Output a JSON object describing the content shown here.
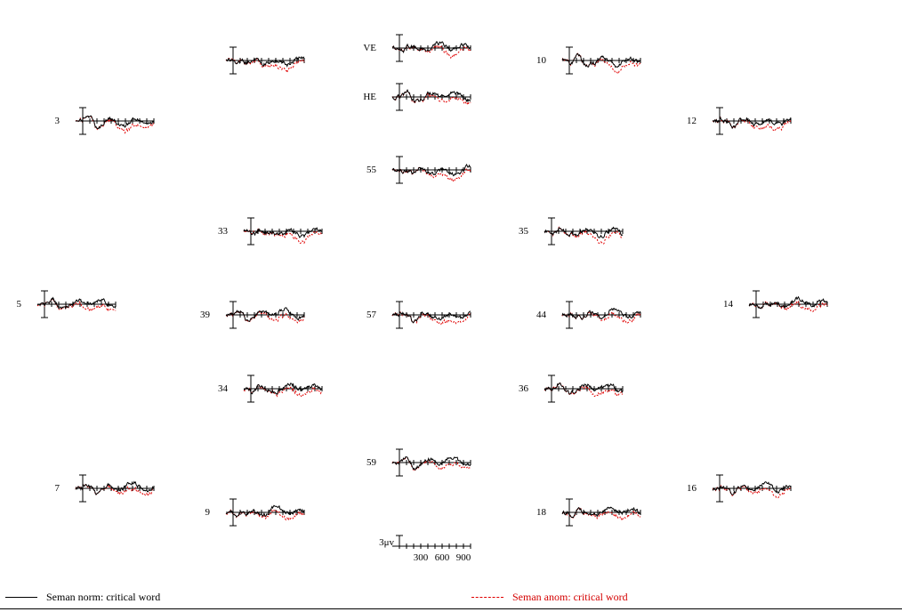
{
  "chart_data": {
    "type": "line",
    "layout": "topographic-erp-montage",
    "x_unit": "ms",
    "x_range": [
      -100,
      1000
    ],
    "x_ticks": [
      300,
      600,
      900
    ],
    "scale_label": "3μv",
    "scale_uv": 3,
    "polarity": "negative-up",
    "colors": {
      "norm": "#000000",
      "anom": "#e00000"
    },
    "series": [
      {
        "name": "Seman norm: critical word",
        "style": "solid"
      },
      {
        "name": "Seman anom: critical word",
        "style": "dashed"
      }
    ],
    "channels": [
      {
        "label": ""
      },
      {
        "label": "VE"
      },
      {
        "label": "10"
      },
      {
        "label": "HE"
      },
      {
        "label": "3"
      },
      {
        "label": "12"
      },
      {
        "label": "55"
      },
      {
        "label": "33"
      },
      {
        "label": "35"
      },
      {
        "label": "5"
      },
      {
        "label": "39"
      },
      {
        "label": "57"
      },
      {
        "label": "44"
      },
      {
        "label": "14"
      },
      {
        "label": "34"
      },
      {
        "label": "36"
      },
      {
        "label": "59"
      },
      {
        "label": "7"
      },
      {
        "label": "16"
      },
      {
        "label": "9"
      },
      {
        "label": "18"
      }
    ]
  },
  "legend": {
    "norm": "Seman norm: critical word",
    "anom": "Seman anom: critical word"
  }
}
